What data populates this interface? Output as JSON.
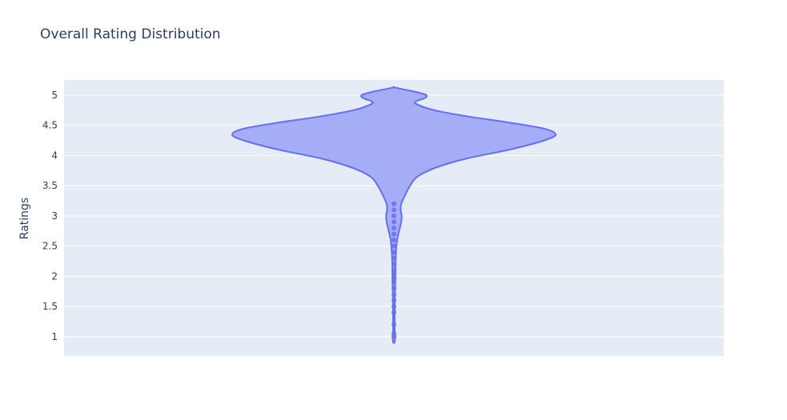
{
  "chart_data": {
    "type": "violin",
    "title": "Overall Rating Distribution",
    "xlabel": "",
    "ylabel": "Ratings",
    "ylim": [
      0.68,
      5.25
    ],
    "y_ticks": [
      1,
      1.5,
      2,
      2.5,
      3,
      3.5,
      4,
      4.5,
      5
    ],
    "y_tick_labels": [
      "1",
      "1.5",
      "2",
      "2.5",
      "3",
      "3.5",
      "4",
      "4.5",
      "5"
    ],
    "grid": true,
    "colors": {
      "fill": "#a1aaf6",
      "line": "#636efa",
      "plot_bg": "#e5ecf6",
      "grid": "#ffffff"
    },
    "density_profile": [
      {
        "y": 0.9,
        "w": 0.004
      },
      {
        "y": 1.0,
        "w": 0.008
      },
      {
        "y": 1.1,
        "w": 0.005
      },
      {
        "y": 1.3,
        "w": 0.005
      },
      {
        "y": 1.6,
        "w": 0.006
      },
      {
        "y": 1.9,
        "w": 0.008
      },
      {
        "y": 2.2,
        "w": 0.01
      },
      {
        "y": 2.4,
        "w": 0.013
      },
      {
        "y": 2.6,
        "w": 0.02
      },
      {
        "y": 2.75,
        "w": 0.032
      },
      {
        "y": 2.9,
        "w": 0.045
      },
      {
        "y": 3.0,
        "w": 0.048
      },
      {
        "y": 3.1,
        "w": 0.042
      },
      {
        "y": 3.2,
        "w": 0.045
      },
      {
        "y": 3.35,
        "w": 0.07
      },
      {
        "y": 3.5,
        "w": 0.1
      },
      {
        "y": 3.65,
        "w": 0.145
      },
      {
        "y": 3.8,
        "w": 0.26
      },
      {
        "y": 3.95,
        "w": 0.45
      },
      {
        "y": 4.1,
        "w": 0.72
      },
      {
        "y": 4.25,
        "w": 0.93
      },
      {
        "y": 4.35,
        "w": 1.0
      },
      {
        "y": 4.45,
        "w": 0.92
      },
      {
        "y": 4.55,
        "w": 0.7
      },
      {
        "y": 4.65,
        "w": 0.45
      },
      {
        "y": 4.75,
        "w": 0.25
      },
      {
        "y": 4.85,
        "w": 0.14
      },
      {
        "y": 4.9,
        "w": 0.14
      },
      {
        "y": 4.95,
        "w": 0.19
      },
      {
        "y": 5.0,
        "w": 0.2
      },
      {
        "y": 5.05,
        "w": 0.14
      },
      {
        "y": 5.1,
        "w": 0.05
      },
      {
        "y": 5.13,
        "w": 0.0
      }
    ],
    "outlier_points": [
      1.0,
      1.05,
      1.2,
      1.4,
      1.5,
      1.6,
      1.7,
      1.8,
      1.9,
      1.95,
      2.0,
      2.05,
      2.1,
      2.2,
      2.3,
      2.4,
      2.5,
      2.6,
      2.7,
      2.8,
      2.9,
      3.0,
      3.1,
      3.2
    ]
  }
}
